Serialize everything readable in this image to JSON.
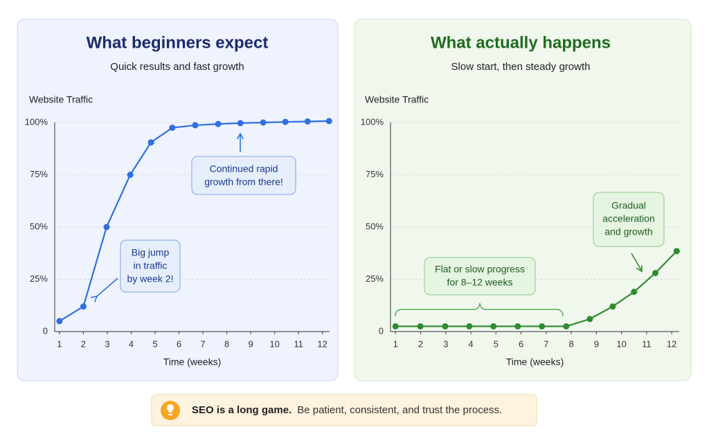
{
  "chart_data": [
    {
      "type": "line",
      "title": "What beginners expect",
      "subtitle": "Quick results and fast growth",
      "y_label": "Website Traffic",
      "x_label": "Time (weeks)",
      "x": [
        1,
        2,
        2.97,
        3.96,
        4.83,
        5.72,
        6.68,
        7.64,
        8.57,
        9.52,
        10.45,
        11.38,
        12.28
      ],
      "series": [
        {
          "color": "#2f6fe0",
          "values": [
            5,
            12,
            50,
            75,
            90.5,
            97.5,
            98.7,
            99.3,
            99.7,
            100,
            100.3,
            100.5,
            100.7
          ]
        }
      ],
      "xlim": [
        0.8,
        12.3
      ],
      "xticks": [
        1,
        2,
        3,
        4,
        5,
        6,
        7,
        8,
        9,
        10,
        11,
        12
      ],
      "ylim": [
        0,
        100
      ],
      "yticks": [
        0,
        {
          "value": 25,
          "label": "25%"
        },
        {
          "value": 50,
          "label": "50%"
        },
        {
          "value": 75,
          "label": "75%"
        },
        {
          "value": 100,
          "label": "100%"
        }
      ],
      "grid": true,
      "annotations": [
        {
          "lines": [
            "Big jump",
            "in traffic",
            "by week 2!"
          ]
        },
        {
          "lines": [
            "Continued rapid",
            "growth from there!"
          ]
        }
      ]
    },
    {
      "type": "line",
      "title": "What actually happens",
      "subtitle": "Slow start, then steady growth",
      "y_label": "Website Traffic",
      "x_label": "Time (weeks)",
      "x": [
        1,
        1.99,
        2.98,
        3.94,
        4.9,
        5.87,
        6.83,
        7.8,
        8.74,
        9.65,
        10.5,
        11.35,
        12.2
      ],
      "series": [
        {
          "color": "#2e8b2e",
          "values": [
            2.5,
            2.5,
            2.5,
            2.5,
            2.5,
            2.5,
            2.5,
            2.5,
            6,
            12,
            19,
            28,
            38.5
          ]
        }
      ],
      "xlim": [
        0.8,
        12.3
      ],
      "xticks": [
        1,
        2,
        3,
        4,
        5,
        6,
        7,
        8,
        9,
        10,
        11,
        12
      ],
      "ylim": [
        0,
        100
      ],
      "yticks": [
        0,
        {
          "value": 25,
          "label": "25%"
        },
        {
          "value": 50,
          "label": "50%"
        },
        {
          "value": 75,
          "label": "75%"
        },
        {
          "value": 100,
          "label": "100%"
        }
      ],
      "grid": true,
      "annotations": [
        {
          "lines": [
            "Flat or slow progress",
            "for 8–12 weeks"
          ]
        },
        {
          "lines": [
            "Gradual",
            "acceleration",
            "and growth"
          ]
        }
      ]
    }
  ],
  "callout": {
    "bold": "SEO is a long game.",
    "text": "Be patient, consistent, and trust the process."
  }
}
